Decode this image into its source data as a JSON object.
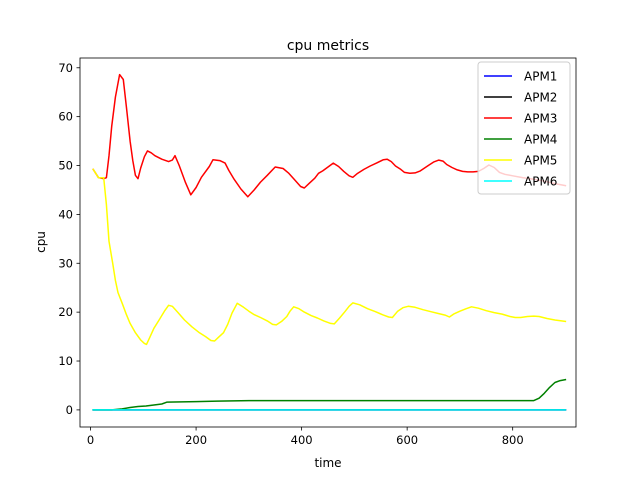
{
  "chart_data": {
    "type": "line",
    "title": "cpu metrics",
    "xlabel": "time",
    "ylabel": "cpu",
    "xlim": [
      -20,
      920
    ],
    "ylim": [
      -3.5,
      72
    ],
    "xticks": [
      0,
      200,
      400,
      600,
      800
    ],
    "yticks": [
      0,
      10,
      20,
      30,
      40,
      50,
      60,
      70
    ],
    "grid": false,
    "legend_position": "top-right",
    "series": [
      {
        "name": "APM1",
        "color": "#0000ff",
        "points": [
          [
            5,
            0
          ],
          [
            900,
            0
          ]
        ]
      },
      {
        "name": "APM2",
        "color": "#000000",
        "points": [
          [
            5,
            0
          ],
          [
            900,
            0
          ]
        ]
      },
      {
        "name": "APM3",
        "color": "#ff0000",
        "points": [
          [
            5,
            49.2
          ],
          [
            15,
            47.5
          ],
          [
            25,
            47.3
          ],
          [
            30,
            47.5
          ],
          [
            35,
            52
          ],
          [
            40,
            58
          ],
          [
            47,
            64
          ],
          [
            55,
            68.6
          ],
          [
            62,
            67.6
          ],
          [
            68,
            62
          ],
          [
            75,
            55
          ],
          [
            80,
            51
          ],
          [
            85,
            48
          ],
          [
            90,
            47.3
          ],
          [
            95,
            49.5
          ],
          [
            102,
            51.8
          ],
          [
            108,
            53
          ],
          [
            115,
            52.6
          ],
          [
            122,
            52
          ],
          [
            135,
            51.3
          ],
          [
            148,
            50.8
          ],
          [
            155,
            51.1
          ],
          [
            160,
            52
          ],
          [
            168,
            50
          ],
          [
            180,
            46.5
          ],
          [
            190,
            44
          ],
          [
            200,
            45.5
          ],
          [
            210,
            47.6
          ],
          [
            225,
            49.8
          ],
          [
            232,
            51.2
          ],
          [
            245,
            51
          ],
          [
            255,
            50.5
          ],
          [
            262,
            49
          ],
          [
            272,
            47.2
          ],
          [
            285,
            45.2
          ],
          [
            298,
            43.6
          ],
          [
            310,
            45
          ],
          [
            322,
            46.6
          ],
          [
            335,
            48
          ],
          [
            350,
            49.7
          ],
          [
            365,
            49.4
          ],
          [
            375,
            48.5
          ],
          [
            385,
            47.3
          ],
          [
            398,
            45.7
          ],
          [
            405,
            45.4
          ],
          [
            415,
            46.4
          ],
          [
            425,
            47.4
          ],
          [
            432,
            48.4
          ],
          [
            440,
            48.9
          ],
          [
            450,
            49.7
          ],
          [
            460,
            50.5
          ],
          [
            470,
            49.8
          ],
          [
            480,
            48.8
          ],
          [
            490,
            47.9
          ],
          [
            497,
            47.6
          ],
          [
            505,
            48.3
          ],
          [
            518,
            49.2
          ],
          [
            530,
            49.9
          ],
          [
            542,
            50.5
          ],
          [
            555,
            51.2
          ],
          [
            562,
            51.3
          ],
          [
            570,
            50.8
          ],
          [
            578,
            49.9
          ],
          [
            588,
            49.2
          ],
          [
            595,
            48.6
          ],
          [
            605,
            48.4
          ],
          [
            615,
            48.5
          ],
          [
            625,
            48.9
          ],
          [
            640,
            50
          ],
          [
            650,
            50.7
          ],
          [
            660,
            51.1
          ],
          [
            668,
            50.9
          ],
          [
            675,
            50.2
          ],
          [
            685,
            49.6
          ],
          [
            695,
            49.1
          ],
          [
            705,
            48.8
          ],
          [
            715,
            48.7
          ],
          [
            725,
            48.7
          ],
          [
            735,
            48.8
          ],
          [
            745,
            49.4
          ],
          [
            755,
            50.1
          ],
          [
            765,
            49.6
          ],
          [
            775,
            48.6
          ],
          [
            785,
            48.2
          ],
          [
            800,
            47.9
          ],
          [
            820,
            47.5
          ],
          [
            840,
            47.2
          ],
          [
            860,
            46.8
          ],
          [
            880,
            46.3
          ],
          [
            900,
            45.9
          ]
        ]
      },
      {
        "name": "APM4",
        "color": "#008000",
        "points": [
          [
            5,
            0
          ],
          [
            40,
            0
          ],
          [
            60,
            0.2
          ],
          [
            75,
            0.5
          ],
          [
            90,
            0.7
          ],
          [
            105,
            0.8
          ],
          [
            120,
            1.0
          ],
          [
            135,
            1.2
          ],
          [
            145,
            1.6
          ],
          [
            200,
            1.7
          ],
          [
            240,
            1.8
          ],
          [
            300,
            1.9
          ],
          [
            840,
            1.9
          ],
          [
            850,
            2.4
          ],
          [
            860,
            3.4
          ],
          [
            870,
            4.6
          ],
          [
            880,
            5.6
          ],
          [
            890,
            6.0
          ],
          [
            900,
            6.2
          ]
        ]
      },
      {
        "name": "APM5",
        "color": "#ffff00",
        "points": [
          [
            5,
            49.2
          ],
          [
            15,
            47.5
          ],
          [
            25,
            47.5
          ],
          [
            30,
            42
          ],
          [
            35,
            34.5
          ],
          [
            42,
            30
          ],
          [
            47,
            26.5
          ],
          [
            52,
            24
          ],
          [
            60,
            21.8
          ],
          [
            68,
            19.5
          ],
          [
            75,
            17.7
          ],
          [
            85,
            15.8
          ],
          [
            95,
            14.3
          ],
          [
            102,
            13.6
          ],
          [
            106,
            13.4
          ],
          [
            112,
            14.8
          ],
          [
            120,
            16.7
          ],
          [
            130,
            18.4
          ],
          [
            140,
            20.2
          ],
          [
            148,
            21.4
          ],
          [
            155,
            21.2
          ],
          [
            165,
            20
          ],
          [
            178,
            18.4
          ],
          [
            192,
            17
          ],
          [
            205,
            15.9
          ],
          [
            218,
            15
          ],
          [
            228,
            14.2
          ],
          [
            235,
            14.1
          ],
          [
            242,
            14.8
          ],
          [
            252,
            15.8
          ],
          [
            260,
            17.5
          ],
          [
            268,
            19.8
          ],
          [
            278,
            21.8
          ],
          [
            290,
            21
          ],
          [
            300,
            20.2
          ],
          [
            310,
            19.5
          ],
          [
            322,
            18.9
          ],
          [
            335,
            18.2
          ],
          [
            345,
            17.5
          ],
          [
            352,
            17.4
          ],
          [
            362,
            18.1
          ],
          [
            372,
            19.1
          ],
          [
            378,
            20.2
          ],
          [
            385,
            21.1
          ],
          [
            395,
            20.7
          ],
          [
            405,
            20
          ],
          [
            418,
            19.3
          ],
          [
            430,
            18.8
          ],
          [
            442,
            18.2
          ],
          [
            455,
            17.7
          ],
          [
            462,
            17.6
          ],
          [
            472,
            18.8
          ],
          [
            482,
            20.1
          ],
          [
            490,
            21.2
          ],
          [
            497,
            21.9
          ],
          [
            510,
            21.5
          ],
          [
            525,
            20.7
          ],
          [
            540,
            20.1
          ],
          [
            555,
            19.4
          ],
          [
            565,
            19
          ],
          [
            572,
            18.9
          ],
          [
            582,
            20.2
          ],
          [
            592,
            20.9
          ],
          [
            602,
            21.2
          ],
          [
            615,
            21
          ],
          [
            630,
            20.5
          ],
          [
            645,
            20.1
          ],
          [
            660,
            19.7
          ],
          [
            672,
            19.4
          ],
          [
            680,
            19
          ],
          [
            688,
            19.6
          ],
          [
            700,
            20.2
          ],
          [
            712,
            20.7
          ],
          [
            722,
            21.1
          ],
          [
            735,
            20.8
          ],
          [
            750,
            20.3
          ],
          [
            765,
            19.9
          ],
          [
            780,
            19.6
          ],
          [
            795,
            19.1
          ],
          [
            805,
            18.9
          ],
          [
            815,
            18.9
          ],
          [
            828,
            19.1
          ],
          [
            840,
            19.2
          ],
          [
            850,
            19.1
          ],
          [
            865,
            18.7
          ],
          [
            880,
            18.4
          ],
          [
            900,
            18.1
          ]
        ]
      },
      {
        "name": "APM6",
        "color": "#00ffff",
        "points": [
          [
            5,
            0
          ],
          [
            900,
            0
          ]
        ]
      }
    ]
  }
}
